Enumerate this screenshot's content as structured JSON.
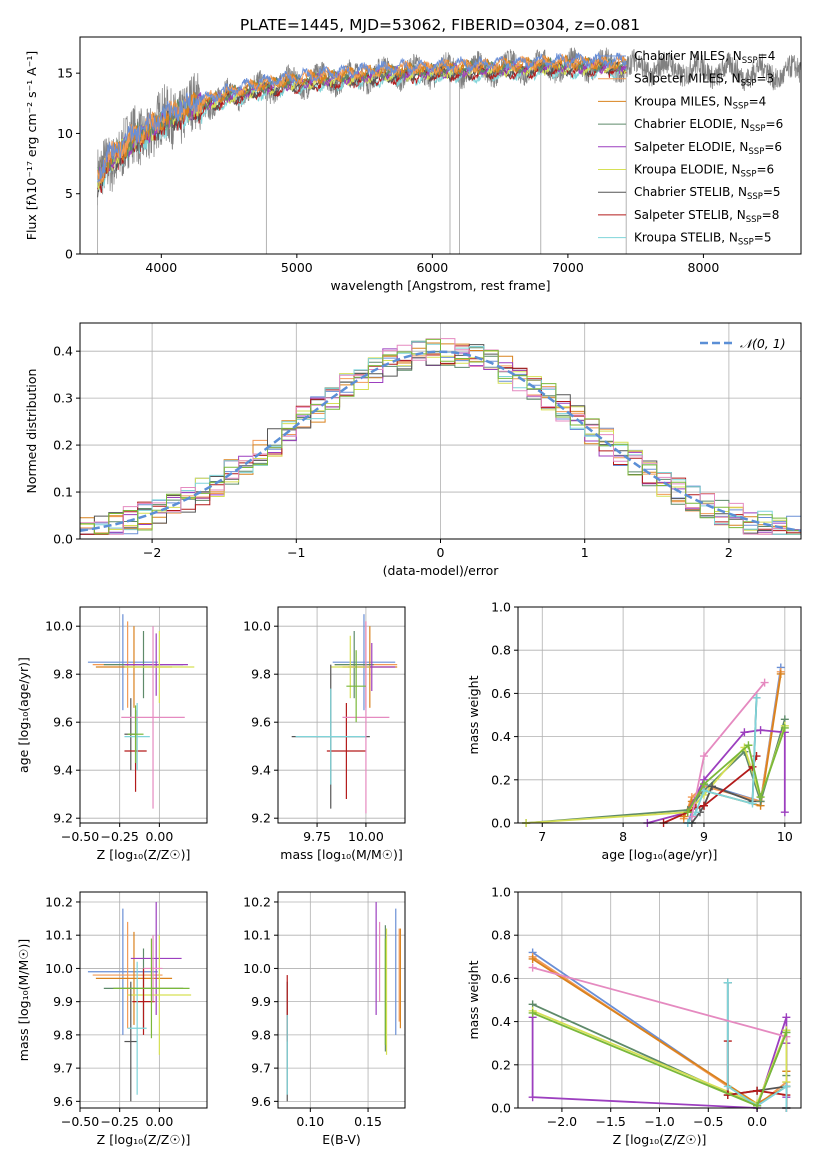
{
  "figure_title": "PLATE=1445, MJD=53062, FIBERID=0304, z=0.081",
  "palette": {
    "Chabrier MILES": "#6a8fd6",
    "Salpeter MILES": "#f29a55",
    "Kroupa MILES": "#d9821e",
    "Chabrier ELODIE": "#5e8a6a",
    "Salpeter ELODIE": "#9c3fbf",
    "Kroupa ELODIE": "#d6e055",
    "Chabrier STELIB": "#555555",
    "Salpeter STELIB": "#b31b1b",
    "Kroupa STELIB": "#7fd4d9",
    "pink": "#e58ac0",
    "green": "#7ab83a",
    "gauss": "#5b8fd6",
    "data": "#808080"
  },
  "chart_data": [
    {
      "type": "line",
      "title": "PLATE=1445, MJD=53062, FIBERID=0304, z=0.081",
      "xlabel": "wavelength [Angstrom, rest frame]",
      "ylabel": "Flux [fλ10⁻¹⁷ erg cm⁻² s⁻¹ A⁻¹]",
      "xlim": [
        3400,
        8720
      ],
      "ylim": [
        0,
        18
      ],
      "xticks": [
        "4000",
        "5000",
        "6000",
        "7000",
        "8000"
      ],
      "yticks": [
        "0",
        "5",
        "10",
        "15"
      ],
      "legend_placement": "right",
      "legend": [
        {
          "label": "Chabrier MILES, N",
          "sub": "SSP",
          "tail": "=4",
          "color": "#6a8fd6"
        },
        {
          "label": "Salpeter MILES, N",
          "sub": "SSP",
          "tail": "=3",
          "color": "#f29a55"
        },
        {
          "label": "Kroupa MILES, N",
          "sub": "SSP",
          "tail": "=4",
          "color": "#d9821e"
        },
        {
          "label": "Chabrier ELODIE, N",
          "sub": "SSP",
          "tail": "=6",
          "color": "#5e8a6a"
        },
        {
          "label": "Salpeter ELODIE, N",
          "sub": "SSP",
          "tail": "=6",
          "color": "#9c3fbf"
        },
        {
          "label": "Kroupa ELODIE, N",
          "sub": "SSP",
          "tail": "=6",
          "color": "#d6e055"
        },
        {
          "label": "Chabrier STELIB, N",
          "sub": "SSP",
          "tail": "=5",
          "color": "#555555"
        },
        {
          "label": "Salpeter STELIB, N",
          "sub": "SSP",
          "tail": "=8",
          "color": "#b31b1b"
        },
        {
          "label": "Kroupa STELIB, N",
          "sub": "SSP",
          "tail": "=5",
          "color": "#7fd4d9"
        }
      ],
      "continuum_model": {
        "x": [
          3540,
          3600,
          3700,
          3800,
          3900,
          4000,
          4100,
          4200,
          4300,
          4500,
          4700,
          4900,
          5100,
          5300,
          5500,
          5700,
          5900,
          6100,
          6300,
          6500,
          6700,
          6900,
          7100,
          7300,
          7500,
          7700,
          7900,
          8100,
          8300,
          8500
        ],
        "y": [
          6.0,
          7.5,
          8.5,
          9.5,
          10.2,
          10.9,
          11.5,
          12.0,
          12.4,
          13.1,
          13.7,
          14.1,
          14.4,
          14.6,
          14.8,
          15.0,
          15.1,
          15.2,
          15.3,
          15.4,
          15.5,
          15.6,
          15.6,
          15.6,
          15.5,
          15.4,
          15.3,
          15.2,
          15.1,
          15.0
        ]
      },
      "data_x_range": [
        3530,
        8720
      ],
      "models_x_range": [
        3530,
        7430
      ]
    },
    {
      "type": "bar",
      "xlabel": "(data-model)/error",
      "ylabel": "Normed distribution",
      "xlim": [
        -2.5,
        2.5
      ],
      "ylim": [
        0,
        0.46
      ],
      "xticks": [
        "−2",
        "−1",
        "0",
        "1",
        "2"
      ],
      "yticks": [
        "0.0",
        "0.1",
        "0.2",
        "0.3",
        "0.4"
      ],
      "legend": [
        {
          "label": "𝒩(0, 1)",
          "color": "#5b8fd6",
          "style": "dashed"
        }
      ],
      "bin_width": 0.1,
      "bin_edges_range": [
        -2.5,
        2.5
      ]
    },
    {
      "type": "scatter",
      "name": "age-vs-Z",
      "xlabel": "Z [log₁₀(Z/Z☉)]",
      "ylabel": "age  [log₁₀(age/yr)]",
      "xlim": [
        -0.5,
        0.3
      ],
      "ylim": [
        9.18,
        10.08
      ],
      "xticks": [
        "−0.50",
        "−0.25",
        "0.00"
      ],
      "yticks": [
        "9.2",
        "9.4",
        "9.6",
        "9.8",
        "10.0"
      ],
      "points": [
        {
          "x": -0.23,
          "y": 9.85,
          "xerr": 0.22,
          "yerr": 0.2,
          "color": "#6a8fd6"
        },
        {
          "x": -0.2,
          "y": 9.84,
          "xerr": 0.22,
          "yerr": 0.18,
          "color": "#f29a55"
        },
        {
          "x": -0.16,
          "y": 9.83,
          "xerr": 0.24,
          "yerr": 0.17,
          "color": "#d9821e"
        },
        {
          "x": -0.1,
          "y": 9.84,
          "xerr": 0.25,
          "yerr": 0.14,
          "color": "#5e8a6a"
        },
        {
          "x": -0.02,
          "y": 9.84,
          "xerr": 0.2,
          "yerr": 0.13,
          "color": "#9c3fbf"
        },
        {
          "x": 0.0,
          "y": 9.83,
          "xerr": 0.22,
          "yerr": 0.15,
          "color": "#d6e055"
        },
        {
          "x": -0.18,
          "y": 9.55,
          "xerr": 0.04,
          "yerr": 0.15,
          "color": "#555555"
        },
        {
          "x": -0.15,
          "y": 9.48,
          "xerr": 0.07,
          "yerr": 0.17,
          "color": "#b31b1b"
        },
        {
          "x": -0.14,
          "y": 9.54,
          "xerr": 0.08,
          "yerr": 0.14,
          "color": "#7fd4d9"
        },
        {
          "x": -0.04,
          "y": 9.62,
          "xerr": 0.2,
          "yerr": 0.38,
          "color": "#e58ac0"
        },
        {
          "x": -0.15,
          "y": 9.55,
          "xerr": 0.05,
          "yerr": 0.12,
          "color": "#7ab83a"
        }
      ]
    },
    {
      "type": "scatter",
      "name": "age-vs-mass",
      "xlabel": "mass [log₁₀(M/M☉)]",
      "ylabel": "",
      "xlim": [
        9.55,
        10.2
      ],
      "ylim": [
        9.18,
        10.08
      ],
      "xticks": [
        "9.75",
        "10.00"
      ],
      "yticks": [
        "9.2",
        "9.4",
        "9.6",
        "9.8",
        "10.0"
      ],
      "points": [
        {
          "x": 9.99,
          "y": 9.85,
          "xerr": 0.16,
          "yerr": 0.2,
          "color": "#6a8fd6"
        },
        {
          "x": 10.0,
          "y": 9.84,
          "xerr": 0.16,
          "yerr": 0.18,
          "color": "#f29a55"
        },
        {
          "x": 10.02,
          "y": 9.83,
          "xerr": 0.14,
          "yerr": 0.17,
          "color": "#d9821e"
        },
        {
          "x": 9.94,
          "y": 9.84,
          "xerr": 0.1,
          "yerr": 0.14,
          "color": "#5e8a6a"
        },
        {
          "x": 10.03,
          "y": 9.83,
          "xerr": 0.12,
          "yerr": 0.1,
          "color": "#9c3fbf"
        },
        {
          "x": 9.92,
          "y": 9.83,
          "xerr": 0.1,
          "yerr": 0.13,
          "color": "#d6e055"
        },
        {
          "x": 9.82,
          "y": 9.54,
          "xerr": 0.2,
          "yerr": 0.3,
          "color": "#555555"
        },
        {
          "x": 9.9,
          "y": 9.48,
          "xerr": 0.1,
          "yerr": 0.2,
          "color": "#b31b1b"
        },
        {
          "x": 9.82,
          "y": 9.54,
          "xerr": 0.18,
          "yerr": 0.2,
          "color": "#7fd4d9"
        },
        {
          "x": 10.0,
          "y": 9.62,
          "xerr": 0.12,
          "yerr": 0.4,
          "color": "#e58ac0"
        },
        {
          "x": 9.95,
          "y": 9.75,
          "xerr": 0.05,
          "yerr": 0.15,
          "color": "#7ab83a"
        }
      ]
    },
    {
      "type": "line",
      "name": "mass-weight-vs-age",
      "xlabel": "age  [log₁₀(age/yr)]",
      "ylabel": "mass weight",
      "xlim": [
        6.7,
        10.2
      ],
      "ylim": [
        0,
        1
      ],
      "xticks": [
        "7",
        "8",
        "9",
        "10"
      ],
      "yticks": [
        "0.0",
        "0.2",
        "0.4",
        "0.6",
        "0.8",
        "1.0"
      ],
      "series": [
        {
          "color": "#6a8fd6",
          "x": [
            8.8,
            8.9,
            9.0,
            9.7,
            9.95
          ],
          "y": [
            0.0,
            0.1,
            0.18,
            0.1,
            0.72
          ]
        },
        {
          "color": "#f29a55",
          "x": [
            8.75,
            8.85,
            9.0,
            9.7,
            9.95
          ],
          "y": [
            0.02,
            0.12,
            0.17,
            0.1,
            0.7
          ]
        },
        {
          "color": "#d9821e",
          "x": [
            8.75,
            8.85,
            9.0,
            9.7,
            9.95
          ],
          "y": [
            0.03,
            0.1,
            0.15,
            0.08,
            0.69
          ]
        },
        {
          "color": "#5e8a6a",
          "x": [
            6.8,
            8.8,
            9.0,
            9.5,
            9.7,
            10.0
          ],
          "y": [
            0.0,
            0.06,
            0.15,
            0.33,
            0.1,
            0.48
          ]
        },
        {
          "color": "#9c3fbf",
          "x": [
            8.3,
            8.8,
            9.0,
            9.5,
            9.7,
            10.0,
            10.0
          ],
          "y": [
            0.0,
            0.05,
            0.2,
            0.42,
            0.43,
            0.42,
            0.05
          ]
        },
        {
          "color": "#d6e055",
          "x": [
            6.8,
            8.8,
            9.0,
            9.5,
            9.7,
            10.0
          ],
          "y": [
            0.0,
            0.05,
            0.13,
            0.35,
            0.12,
            0.45
          ]
        },
        {
          "color": "#555555",
          "x": [
            8.85,
            8.95,
            9.0,
            9.1,
            9.6,
            9.65
          ],
          "y": [
            0.0,
            0.05,
            0.08,
            0.17,
            0.1,
            0.58
          ]
        },
        {
          "color": "#b31b1b",
          "x": [
            8.5,
            8.8,
            8.9,
            9.0,
            9.6,
            9.65
          ],
          "y": [
            0.0,
            0.05,
            0.07,
            0.08,
            0.26,
            0.31
          ]
        },
        {
          "color": "#7fd4d9",
          "x": [
            8.8,
            8.9,
            9.0,
            9.6,
            9.65
          ],
          "y": [
            0.0,
            0.05,
            0.15,
            0.09,
            0.58
          ]
        },
        {
          "color": "#e58ac0",
          "x": [
            8.85,
            9.0,
            9.75
          ],
          "y": [
            0.03,
            0.31,
            0.65
          ]
        },
        {
          "color": "#7ab83a",
          "x": [
            8.8,
            9.0,
            9.55,
            9.7,
            10.0
          ],
          "y": [
            0.05,
            0.18,
            0.36,
            0.12,
            0.44
          ]
        }
      ]
    },
    {
      "type": "scatter",
      "name": "mass-vs-Z",
      "xlabel": "Z [log₁₀(Z/Z☉)]",
      "ylabel": "mass [log₁₀(M/M☉)]",
      "xlim": [
        -0.5,
        0.3
      ],
      "ylim": [
        9.58,
        10.23
      ],
      "xticks": [
        "−0.50",
        "−0.25",
        "0.00"
      ],
      "yticks": [
        "9.6",
        "9.7",
        "9.8",
        "9.9",
        "10.0",
        "10.1",
        "10.2"
      ],
      "points": [
        {
          "x": -0.23,
          "y": 9.99,
          "xerr": 0.22,
          "yerr": 0.19,
          "color": "#6a8fd6"
        },
        {
          "x": -0.2,
          "y": 9.98,
          "xerr": 0.22,
          "yerr": 0.16,
          "color": "#f29a55"
        },
        {
          "x": -0.16,
          "y": 9.97,
          "xerr": 0.24,
          "yerr": 0.14,
          "color": "#d9821e"
        },
        {
          "x": -0.1,
          "y": 9.94,
          "xerr": 0.25,
          "yerr": 0.12,
          "color": "#5e8a6a"
        },
        {
          "x": -0.02,
          "y": 10.03,
          "xerr": 0.16,
          "yerr": 0.17,
          "color": "#9c3fbf"
        },
        {
          "x": 0.0,
          "y": 9.92,
          "xerr": 0.2,
          "yerr": 0.18,
          "color": "#d6e055"
        },
        {
          "x": -0.18,
          "y": 9.78,
          "xerr": 0.04,
          "yerr": 0.18,
          "color": "#555555"
        },
        {
          "x": -0.1,
          "y": 9.9,
          "xerr": 0.07,
          "yerr": 0.1,
          "color": "#b31b1b"
        },
        {
          "x": -0.14,
          "y": 9.82,
          "xerr": 0.06,
          "yerr": 0.2,
          "color": "#7fd4d9"
        },
        {
          "x": -0.04,
          "y": 10.0,
          "xerr": 0.06,
          "yerr": 0.1,
          "color": "#e58ac0"
        },
        {
          "x": -0.05,
          "y": 9.94,
          "xerr": 0.24,
          "yerr": 0.15,
          "color": "#7ab83a"
        }
      ]
    },
    {
      "type": "scatter",
      "name": "mass-vs-EBV",
      "xlabel": "E(B-V)",
      "ylabel": "",
      "xlim": [
        0.072,
        0.182
      ],
      "ylim": [
        9.58,
        10.23
      ],
      "xticks": [
        "0.10",
        "0.15"
      ],
      "yticks": [
        "9.6",
        "9.7",
        "9.8",
        "9.9",
        "10.0",
        "10.1",
        "10.2"
      ],
      "points": [
        {
          "x": 0.174,
          "y": 9.99,
          "yerr": 0.19,
          "color": "#6a8fd6"
        },
        {
          "x": 0.177,
          "y": 9.98,
          "yerr": 0.14,
          "color": "#f29a55"
        },
        {
          "x": 0.178,
          "y": 9.97,
          "yerr": 0.15,
          "color": "#d9821e"
        },
        {
          "x": 0.165,
          "y": 9.94,
          "yerr": 0.19,
          "color": "#5e8a6a"
        },
        {
          "x": 0.157,
          "y": 10.03,
          "yerr": 0.17,
          "color": "#9c3fbf"
        },
        {
          "x": 0.166,
          "y": 9.93,
          "yerr": 0.19,
          "color": "#d6e055"
        },
        {
          "x": 0.08,
          "y": 9.78,
          "yerr": 0.18,
          "color": "#555555"
        },
        {
          "x": 0.08,
          "y": 9.88,
          "yerr": 0.1,
          "color": "#b31b1b"
        },
        {
          "x": 0.08,
          "y": 9.74,
          "yerr": 0.12,
          "color": "#7fd4d9"
        },
        {
          "x": 0.16,
          "y": 10.02,
          "yerr": 0.12,
          "color": "#e58ac0"
        },
        {
          "x": 0.165,
          "y": 9.93,
          "yerr": 0.16,
          "color": "#7ab83a"
        }
      ]
    },
    {
      "type": "line",
      "name": "mass-weight-vs-Z",
      "xlabel": "Z [log₁₀(Z/Z☉)]",
      "ylabel": "mass weight",
      "xlim": [
        -2.45,
        0.45
      ],
      "ylim": [
        0,
        1
      ],
      "xticks": [
        "−2.0",
        "−1.5",
        "−1.0",
        "−0.5",
        "0.0"
      ],
      "yticks": [
        "0.0",
        "0.2",
        "0.4",
        "0.6",
        "0.8",
        "1.0"
      ],
      "series": [
        {
          "color": "#6a8fd6",
          "x": [
            -2.3,
            0.0,
            0.3,
            0.3
          ],
          "y": [
            0.72,
            0.01,
            0.1,
            0.17
          ]
        },
        {
          "color": "#f29a55",
          "x": [
            -2.3,
            0.0,
            0.3,
            0.3
          ],
          "y": [
            0.7,
            0.01,
            0.12,
            0.17
          ]
        },
        {
          "color": "#d9821e",
          "x": [
            -2.3,
            0.0,
            0.3,
            0.3
          ],
          "y": [
            0.69,
            0.02,
            0.1,
            0.17
          ]
        },
        {
          "color": "#5e8a6a",
          "x": [
            -2.3,
            0.0,
            0.3,
            0.3
          ],
          "y": [
            0.48,
            0.01,
            0.35,
            0.15
          ]
        },
        {
          "color": "#9c3fbf",
          "x": [
            -2.3,
            -2.3,
            0.0,
            0.3,
            0.3,
            0.3,
            0.3
          ],
          "y": [
            0.42,
            0.05,
            0.0,
            0.42,
            0.3,
            0.05,
            0.0
          ]
        },
        {
          "color": "#d6e055",
          "x": [
            -2.3,
            0.0,
            0.3,
            0.3
          ],
          "y": [
            0.45,
            0.02,
            0.36,
            0.12
          ]
        },
        {
          "color": "#555555",
          "x": [
            -0.3,
            -0.3,
            0.0,
            0.3,
            0.3
          ],
          "y": [
            0.58,
            0.06,
            0.08,
            0.1,
            0.0
          ]
        },
        {
          "color": "#b31b1b",
          "x": [
            -0.3,
            -0.3,
            0.0,
            0.3,
            0.3
          ],
          "y": [
            0.31,
            0.06,
            0.08,
            0.06,
            0.0
          ]
        },
        {
          "color": "#7fd4d9",
          "x": [
            -0.3,
            -0.3,
            0.0,
            0.3,
            0.3
          ],
          "y": [
            0.58,
            0.1,
            0.01,
            0.1,
            0.0
          ]
        },
        {
          "color": "#e58ac0",
          "x": [
            -2.3,
            0.3
          ],
          "y": [
            0.65,
            0.33
          ]
        },
        {
          "color": "#7ab83a",
          "x": [
            -2.3,
            0.0,
            0.3
          ],
          "y": [
            0.44,
            0.01,
            0.35
          ]
        }
      ]
    }
  ]
}
